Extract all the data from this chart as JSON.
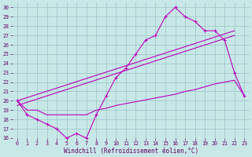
{
  "xlabel": "Windchill (Refroidissement éolien,°C)",
  "bg_color": "#c8e8e8",
  "grid_color": "#a0c8c8",
  "line_color": "#bb00bb",
  "xlim": [
    -0.5,
    23.5
  ],
  "ylim": [
    16,
    30.5
  ],
  "xticks": [
    0,
    1,
    2,
    3,
    4,
    5,
    6,
    7,
    8,
    9,
    10,
    11,
    12,
    13,
    14,
    15,
    16,
    17,
    18,
    19,
    20,
    21,
    22,
    23
  ],
  "yticks": [
    16,
    17,
    18,
    19,
    20,
    21,
    22,
    23,
    24,
    25,
    26,
    27,
    28,
    29,
    30
  ],
  "curve_x": [
    0,
    1,
    2,
    3,
    4,
    5,
    6,
    7,
    8,
    9,
    10,
    11,
    12,
    13,
    14,
    15,
    16,
    17,
    18,
    19,
    20,
    21,
    22,
    23
  ],
  "curve_y": [
    20,
    18.5,
    18,
    17.5,
    17,
    16,
    16.5,
    16,
    18.5,
    20.5,
    22.5,
    23.5,
    25,
    26.5,
    27,
    29,
    30,
    29,
    28.5,
    27.5,
    27.5,
    26.5,
    23,
    20.5
  ],
  "trend1_x": [
    0,
    22
  ],
  "trend1_y": [
    20,
    27.5
  ],
  "trend2_x": [
    0,
    22
  ],
  "trend2_y": [
    19.5,
    27
  ],
  "flat_x": [
    0,
    1,
    2,
    3,
    4,
    5,
    6,
    7,
    8,
    9,
    10,
    11,
    12,
    13,
    14,
    15,
    16,
    17,
    18,
    19,
    20,
    21,
    22,
    23
  ],
  "flat_y": [
    20,
    19,
    19,
    18.5,
    18.5,
    18.5,
    18.5,
    18.5,
    19,
    19.2,
    19.5,
    19.7,
    19.9,
    20.1,
    20.3,
    20.5,
    20.7,
    21,
    21.2,
    21.5,
    21.8,
    22,
    22.2,
    20.5
  ]
}
